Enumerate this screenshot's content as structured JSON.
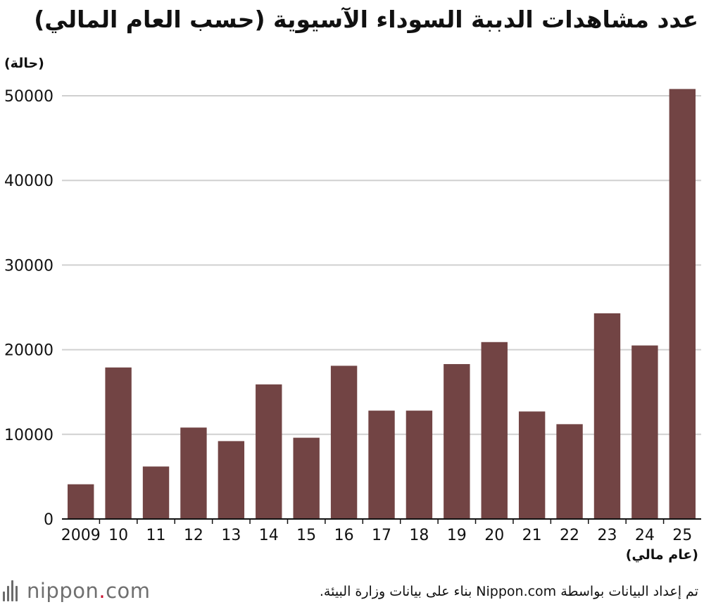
{
  "title": "عدد مشاهدات الدببة السوداء الآسيوية (حسب العام المالي)",
  "y_unit_label": "(حالة)",
  "x_unit_label": "(عام مالي)",
  "source_note": "تم إعداد البيانات بواسطة Nippon.com بناء على بيانات وزارة البيئة.",
  "logo": {
    "word": "nippon",
    "dot": ".",
    "suffix": "com"
  },
  "colors": {
    "bar": "#724444",
    "grid": "#d0d0d0",
    "axis": "#111111",
    "logo_dot": "#c8102e"
  },
  "chart_data": {
    "type": "bar",
    "categories": [
      "2009",
      "10",
      "11",
      "12",
      "13",
      "14",
      "15",
      "16",
      "17",
      "18",
      "19",
      "20",
      "21",
      "22",
      "23",
      "24",
      "25"
    ],
    "values": [
      4100,
      17900,
      6200,
      10800,
      9200,
      15900,
      9600,
      18100,
      12800,
      12800,
      18300,
      20900,
      12700,
      11200,
      24300,
      20500,
      50800
    ],
    "ylim": [
      0,
      50000
    ],
    "yticks": [
      0,
      10000,
      20000,
      30000,
      40000,
      50000
    ],
    "ylabel": "(حالة)",
    "xlabel": "(عام مالي)",
    "grid": true,
    "legend": "none"
  }
}
